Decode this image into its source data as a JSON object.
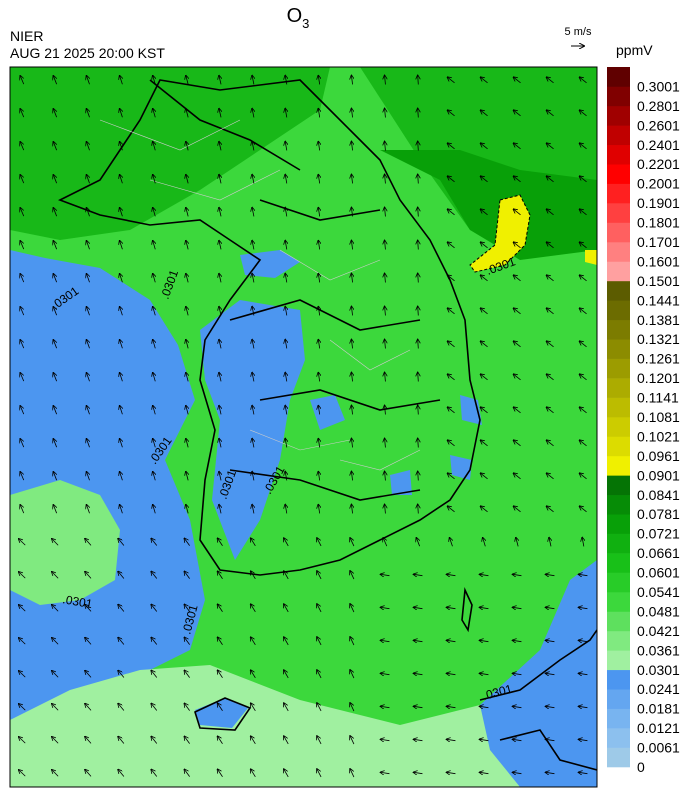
{
  "header": {
    "title_main": "O",
    "title_sub": "3",
    "agency": "NIER",
    "datetime": "AUG 21 2025 20:00 KST",
    "vector_scale": "5 m/s"
  },
  "colorbar": {
    "unit": "ppmV",
    "levels": [
      "0",
      "0.0061",
      "0.0121",
      "0.0181",
      "0.0241",
      "0.0301",
      "0.0361",
      "0.0421",
      "0.0481",
      "0.0541",
      "0.0601",
      "0.0661",
      "0.0721",
      "0.0781",
      "0.0841",
      "0.0901",
      "0.0961",
      "0.1021",
      "0.1081",
      "0.1141",
      "0.1201",
      "0.1261",
      "0.1321",
      "0.1381",
      "0.1441",
      "0.1501",
      "0.1601",
      "0.1701",
      "0.1801",
      "0.1901",
      "0.2001",
      "0.2201",
      "0.2401",
      "0.2601",
      "0.2801",
      "0.3001"
    ],
    "colors": [
      "#9ecae8",
      "#8cc0ee",
      "#78b4f0",
      "#64a6f0",
      "#4c96f0",
      "#a0f0a0",
      "#80ea80",
      "#5ee05e",
      "#3cd83c",
      "#28cc28",
      "#18c018",
      "#10b010",
      "#08a008",
      "#068c06",
      "#057405",
      "#f0f000",
      "#dcdc00",
      "#cccc00",
      "#bcbc00",
      "#acac00",
      "#9c9c00",
      "#8c8c00",
      "#7c7c00",
      "#6c6c00",
      "#5c5c00",
      "#ffa0a0",
      "#ff8080",
      "#ff6060",
      "#ff4040",
      "#ff2020",
      "#ff0000",
      "#e00000",
      "#c00000",
      "#a00000",
      "#800000",
      "#600000"
    ]
  },
  "contour_labels": [
    ".0301",
    ".0301",
    ".0301",
    ".0301",
    ".0301",
    ".0301",
    ".0301",
    ".0301",
    ".0301"
  ]
}
